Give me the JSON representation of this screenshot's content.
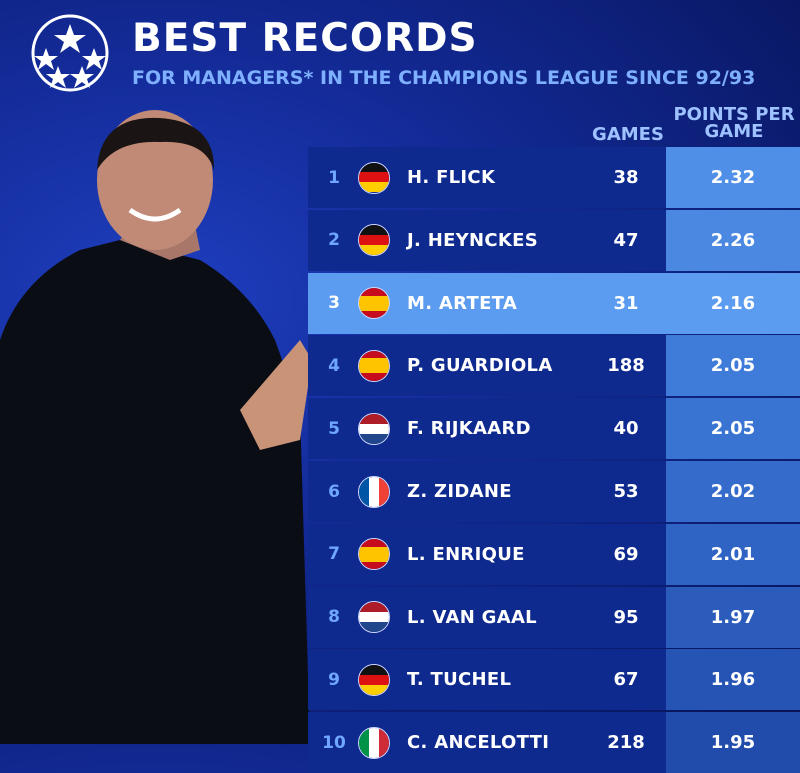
{
  "header": {
    "title": "BEST RECORDS",
    "subtitle": "FOR MANAGERS* IN THE CHAMPIONS LEAGUE SINCE 92/93",
    "logo": "champions-league-starball"
  },
  "columns": {
    "games": "GAMES",
    "ppg": "POINTS PER GAME"
  },
  "highlight_color": "#5b9bf0",
  "rows": [
    {
      "rank": "1",
      "flag": "germany",
      "name": "H. FLICK",
      "games": "38",
      "ppg": "2.32"
    },
    {
      "rank": "2",
      "flag": "germany",
      "name": "J. HEYNCKES",
      "games": "47",
      "ppg": "2.26"
    },
    {
      "rank": "3",
      "flag": "spain",
      "name": "M. ARTETA",
      "games": "31",
      "ppg": "2.16",
      "highlighted": true
    },
    {
      "rank": "4",
      "flag": "spain",
      "name": "P. GUARDIOLA",
      "games": "188",
      "ppg": "2.05"
    },
    {
      "rank": "5",
      "flag": "netherlands",
      "name": "F. RIJKAARD",
      "games": "40",
      "ppg": "2.05"
    },
    {
      "rank": "6",
      "flag": "france",
      "name": "Z. ZIDANE",
      "games": "53",
      "ppg": "2.02"
    },
    {
      "rank": "7",
      "flag": "spain",
      "name": "L. ENRIQUE",
      "games": "69",
      "ppg": "2.01"
    },
    {
      "rank": "8",
      "flag": "netherlands",
      "name": "L. VAN GAAL",
      "games": "95",
      "ppg": "1.97"
    },
    {
      "rank": "9",
      "flag": "germany",
      "name": "T. TUCHEL",
      "games": "67",
      "ppg": "1.96"
    },
    {
      "rank": "10",
      "flag": "italy",
      "name": "C. ANCELOTTI",
      "games": "218",
      "ppg": "1.95"
    }
  ]
}
